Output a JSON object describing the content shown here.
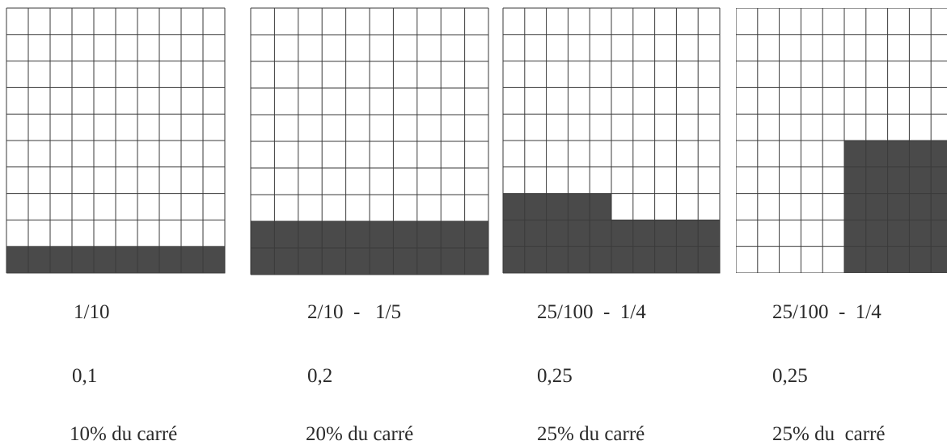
{
  "panels": [
    {
      "id": "a",
      "shaded_cells": {
        "type": "bottom-rows",
        "rows": 1
      },
      "fraction_text": "1/10",
      "decimal_text": "0,1",
      "percent_text": "10% du carré"
    },
    {
      "id": "b",
      "shaded_cells": {
        "type": "bottom-rows",
        "rows": 2
      },
      "fraction_text": "2/10  -   1/5",
      "decimal_text": "0,2",
      "percent_text": "20% du carré"
    },
    {
      "id": "c",
      "shaded_cells": {
        "type": "bottom-rows-plus-block",
        "rows": 2,
        "extra_rows": 1,
        "extra_cols": 5
      },
      "fraction_text": "25/100  -  1/4",
      "decimal_text": "0,25",
      "percent_text": "25% du carré"
    },
    {
      "id": "d",
      "shaded_cells": {
        "type": "right-block",
        "rows": 5,
        "cols": 5
      },
      "fraction_text": "25/100  -  1/4",
      "decimal_text": "0,25",
      "percent_text": "25% du  carré"
    }
  ],
  "colors": {
    "shade": "#4a4a4a",
    "grid": "#3a3a3a"
  }
}
